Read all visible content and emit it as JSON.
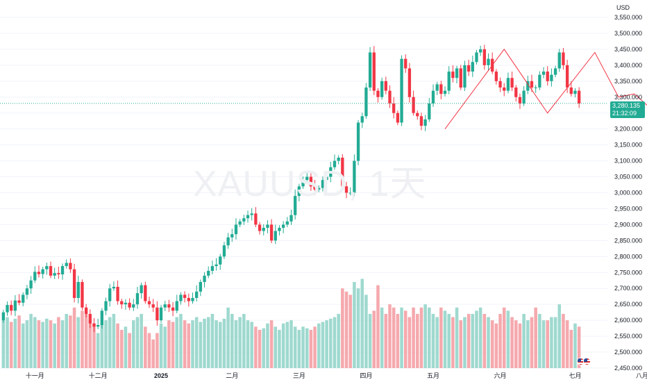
{
  "watermark": "XAUUSD, 1天",
  "currency": "USD",
  "current_price": {
    "price": "3,280.135",
    "countdown": "21:32:09",
    "value": 3280.135
  },
  "colors": {
    "up": "#22ab94",
    "down": "#f23645",
    "vol_up": "#9fd9cf",
    "vol_down": "#f5a9ae",
    "grid": "#f0f3fa",
    "text": "#131722",
    "pattern": "#f23645"
  },
  "chart_data": {
    "type": "candlestick",
    "title": "XAUUSD, 1天",
    "ylabel": "USD",
    "ylim": [
      2450,
      3580
    ],
    "y_ticks": [
      "3,550.000",
      "3,500.000",
      "3,450.000",
      "3,400.000",
      "3,350.000",
      "3,300.000",
      "3,250.000",
      "3,200.000",
      "3,150.000",
      "3,100.000",
      "3,050.000",
      "3,000.000",
      "2,950.000",
      "2,900.000",
      "2,850.000",
      "2,800.000",
      "2,750.000",
      "2,700.000",
      "2,650.000",
      "2,600.000",
      "2,550.000",
      "2,500.000",
      "2,450.000"
    ],
    "x_ticks": [
      "十一月",
      "十二月",
      "2025",
      "二月",
      "三月",
      "四月",
      "五月",
      "六月",
      "七月",
      "八月"
    ],
    "x_tick_index": [
      8,
      24,
      40,
      58,
      75,
      92,
      109,
      126,
      145,
      162
    ],
    "close": [
      2625,
      2648,
      2630,
      2662,
      2655,
      2680,
      2700,
      2725,
      2752,
      2745,
      2760,
      2770,
      2740,
      2748,
      2744,
      2770,
      2780,
      2760,
      2670,
      2720,
      2640,
      2620,
      2590,
      2580,
      2585,
      2630,
      2660,
      2700,
      2705,
      2660,
      2650,
      2655,
      2640,
      2650,
      2685,
      2710,
      2660,
      2650,
      2640,
      2600,
      2640,
      2650,
      2640,
      2630,
      2660,
      2680,
      2670,
      2660,
      2670,
      2690,
      2720,
      2740,
      2755,
      2770,
      2775,
      2800,
      2835,
      2860,
      2870,
      2900,
      2910,
      2920,
      2930,
      2935,
      2900,
      2880,
      2890,
      2900,
      2850,
      2880,
      2890,
      2900,
      2910,
      2930,
      2990,
      3020,
      3040,
      3050,
      3020,
      3010,
      3015,
      3040,
      3050,
      3080,
      3100,
      3110,
      3020,
      3000,
      3000,
      3100,
      3220,
      3240,
      3330,
      3440,
      3320,
      3300,
      3350,
      3320,
      3280,
      3250,
      3220,
      3420,
      3390,
      3300,
      3250,
      3240,
      3210,
      3230,
      3280,
      3320,
      3340,
      3310,
      3320,
      3380,
      3360,
      3390,
      3330,
      3400,
      3380,
      3410,
      3440,
      3450,
      3400,
      3420,
      3380,
      3350,
      3330,
      3320,
      3360,
      3330,
      3300,
      3280,
      3320,
      3350,
      3330,
      3330,
      3370,
      3380,
      3350,
      3370,
      3390,
      3440,
      3400,
      3330,
      3310,
      3320,
      3280
    ],
    "open": [
      2600,
      2625,
      2648,
      2630,
      2662,
      2655,
      2680,
      2700,
      2725,
      2752,
      2745,
      2760,
      2770,
      2740,
      2748,
      2744,
      2770,
      2780,
      2760,
      2670,
      2720,
      2640,
      2620,
      2590,
      2580,
      2585,
      2630,
      2660,
      2700,
      2705,
      2660,
      2650,
      2655,
      2640,
      2650,
      2685,
      2710,
      2660,
      2650,
      2640,
      2600,
      2640,
      2650,
      2640,
      2630,
      2660,
      2680,
      2670,
      2660,
      2670,
      2690,
      2720,
      2740,
      2755,
      2770,
      2775,
      2800,
      2835,
      2860,
      2870,
      2900,
      2910,
      2920,
      2930,
      2935,
      2900,
      2880,
      2890,
      2900,
      2850,
      2880,
      2890,
      2900,
      2910,
      2930,
      2990,
      3020,
      3040,
      3050,
      3020,
      3010,
      3015,
      3040,
      3050,
      3080,
      3100,
      3110,
      3020,
      3000,
      3000,
      3100,
      3220,
      3240,
      3330,
      3440,
      3320,
      3300,
      3350,
      3320,
      3280,
      3250,
      3220,
      3420,
      3390,
      3300,
      3250,
      3240,
      3210,
      3230,
      3280,
      3320,
      3340,
      3310,
      3320,
      3380,
      3360,
      3390,
      3330,
      3400,
      3380,
      3410,
      3440,
      3450,
      3400,
      3420,
      3380,
      3350,
      3330,
      3320,
      3360,
      3330,
      3300,
      3280,
      3320,
      3350,
      3330,
      3330,
      3370,
      3380,
      3350,
      3370,
      3390,
      3440,
      3400,
      3330,
      3310,
      3320
    ],
    "volume_up": [
      true,
      true,
      false,
      true,
      false,
      true,
      true,
      true,
      true,
      false,
      true,
      true,
      false,
      true,
      false,
      true,
      true,
      false,
      false,
      true,
      false,
      false,
      false,
      false,
      true,
      true,
      true,
      true,
      true,
      false,
      false,
      true,
      false,
      true,
      true,
      true,
      false,
      false,
      false,
      false,
      true,
      true,
      false,
      false,
      true,
      true,
      false,
      false,
      true,
      true,
      true,
      true,
      true,
      true,
      true,
      true,
      true,
      true,
      true,
      true,
      true,
      true,
      true,
      true,
      false,
      false,
      true,
      true,
      false,
      true,
      true,
      true,
      true,
      true,
      true,
      true,
      true,
      true,
      false,
      false,
      true,
      true,
      true,
      true,
      true,
      true,
      false,
      false,
      false,
      true,
      true,
      true,
      true,
      true,
      false,
      false,
      true,
      false,
      false,
      false,
      false,
      true,
      false,
      false,
      false,
      false,
      false,
      true,
      true,
      true,
      true,
      false,
      true,
      true,
      false,
      true,
      false,
      true,
      false,
      true,
      true,
      true,
      false,
      true,
      false,
      false,
      false,
      false,
      true,
      false,
      false,
      false,
      true,
      true,
      false,
      false,
      true,
      true,
      false,
      true,
      true,
      true,
      false,
      false,
      false,
      true,
      false
    ],
    "volume": [
      2600,
      2610,
      2595,
      2605,
      2615,
      2590,
      2600,
      2620,
      2610,
      2600,
      2595,
      2605,
      2600,
      2590,
      2610,
      2600,
      2620,
      2615,
      2640,
      2610,
      2630,
      2620,
      2600,
      2590,
      2560,
      2590,
      2600,
      2610,
      2620,
      2590,
      2570,
      2580,
      2560,
      2600,
      2610,
      2620,
      2580,
      2560,
      2540,
      2560,
      2590,
      2580,
      2600,
      2595,
      2610,
      2620,
      2600,
      2590,
      2600,
      2610,
      2595,
      2605,
      2610,
      2620,
      2600,
      2595,
      2605,
      2640,
      2620,
      2600,
      2610,
      2620,
      2600,
      2595,
      2580,
      2570,
      2575,
      2590,
      2600,
      2580,
      2570,
      2590,
      2595,
      2600,
      2580,
      2570,
      2580,
      2575,
      2570,
      2580,
      2590,
      2595,
      2600,
      2605,
      2610,
      2620,
      2700,
      2690,
      2680,
      2720,
      2700,
      2730,
      2680,
      2620,
      2630,
      2710,
      2640,
      2620,
      2650,
      2640,
      2620,
      2640,
      2630,
      2610,
      2640,
      2620,
      2640,
      2650,
      2640,
      2620,
      2610,
      2640,
      2630,
      2620,
      2610,
      2640,
      2600,
      2610,
      2620,
      2620,
      2630,
      2640,
      2620,
      2610,
      2600,
      2590,
      2620,
      2640,
      2630,
      2610,
      2600,
      2590,
      2620,
      2600,
      2610,
      2640,
      2620,
      2600,
      2600,
      2610,
      2610,
      2650,
      2620,
      2600,
      2570,
      2590,
      2580
    ]
  }
}
